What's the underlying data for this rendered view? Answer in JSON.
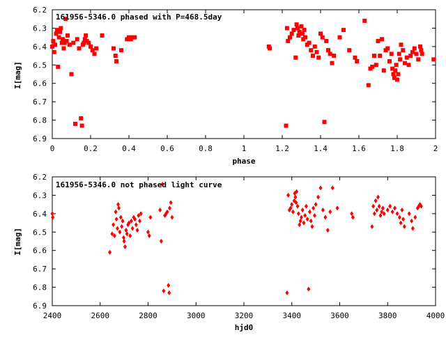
{
  "chart_data": [
    {
      "type": "scatter",
      "title": "161956-5346.0 phased with P=468.5day",
      "xlabel": "phase",
      "ylabel": "I[mag]",
      "xlim": [
        0,
        2
      ],
      "ylim": [
        6.2,
        6.9
      ],
      "y_inverted": true,
      "xticks": [
        0,
        0.2,
        0.4,
        0.6,
        0.8,
        1,
        1.2,
        1.4,
        1.6,
        1.8,
        2
      ],
      "xtick_labels": [
        "0",
        "0.2",
        "0.4",
        "0.6",
        "0.8",
        "1",
        "1.2",
        "1.4",
        "1.6",
        "1.8",
        "2"
      ],
      "yticks": [
        6.2,
        6.3,
        6.4,
        6.5,
        6.6,
        6.7,
        6.8,
        6.9
      ],
      "ytick_labels": [
        "6.2",
        "6.3",
        "6.4",
        "6.5",
        "6.6",
        "6.7",
        "6.8",
        "6.9"
      ],
      "grid": false,
      "marker_color": "#ff0000",
      "marker": "square",
      "series": [
        {
          "points": [
            [
              0.0,
              6.4
            ],
            [
              0.005,
              6.37
            ],
            [
              0.01,
              6.43
            ],
            [
              0.015,
              6.39
            ],
            [
              0.02,
              6.33
            ],
            [
              0.025,
              6.31
            ],
            [
              0.03,
              6.51
            ],
            [
              0.035,
              6.35
            ],
            [
              0.04,
              6.32
            ],
            [
              0.045,
              6.3
            ],
            [
              0.05,
              6.38
            ],
            [
              0.055,
              6.36
            ],
            [
              0.06,
              6.41
            ],
            [
              0.065,
              6.38
            ],
            [
              0.07,
              6.25
            ],
            [
              0.075,
              6.37
            ],
            [
              0.08,
              6.34
            ],
            [
              0.09,
              6.39
            ],
            [
              0.1,
              6.55
            ],
            [
              0.11,
              6.38
            ],
            [
              0.12,
              6.82
            ],
            [
              0.13,
              6.36
            ],
            [
              0.14,
              6.41
            ],
            [
              0.15,
              6.79
            ],
            [
              0.155,
              6.83
            ],
            [
              0.16,
              6.39
            ],
            [
              0.165,
              6.38
            ],
            [
              0.17,
              6.36
            ],
            [
              0.175,
              6.34
            ],
            [
              0.18,
              6.37
            ],
            [
              0.19,
              6.38
            ],
            [
              0.2,
              6.4
            ],
            [
              0.21,
              6.42
            ],
            [
              0.22,
              6.44
            ],
            [
              0.23,
              6.41
            ],
            [
              0.26,
              6.34
            ],
            [
              0.32,
              6.41
            ],
            [
              0.33,
              6.45
            ],
            [
              0.335,
              6.48
            ],
            [
              0.36,
              6.42
            ],
            [
              0.39,
              6.36
            ],
            [
              0.4,
              6.35
            ],
            [
              0.41,
              6.36
            ],
            [
              0.42,
              6.35
            ],
            [
              0.43,
              6.35
            ]
          ]
        },
        {
          "points": [
            [
              1.13,
              6.4
            ],
            [
              1.135,
              6.41
            ],
            [
              1.22,
              6.83
            ],
            [
              1.225,
              6.3
            ],
            [
              1.23,
              6.37
            ],
            [
              1.24,
              6.35
            ],
            [
              1.25,
              6.33
            ],
            [
              1.26,
              6.31
            ],
            [
              1.27,
              6.46
            ],
            [
              1.275,
              6.28
            ],
            [
              1.28,
              6.3
            ],
            [
              1.285,
              6.34
            ],
            [
              1.29,
              6.32
            ],
            [
              1.3,
              6.29
            ],
            [
              1.305,
              6.33
            ],
            [
              1.31,
              6.36
            ],
            [
              1.315,
              6.31
            ],
            [
              1.32,
              6.35
            ],
            [
              1.33,
              6.39
            ],
            [
              1.34,
              6.38
            ],
            [
              1.35,
              6.42
            ],
            [
              1.36,
              6.45
            ],
            [
              1.37,
              6.4
            ],
            [
              1.38,
              6.43
            ],
            [
              1.39,
              6.46
            ],
            [
              1.4,
              6.33
            ],
            [
              1.41,
              6.35
            ],
            [
              1.42,
              6.81
            ],
            [
              1.43,
              6.37
            ],
            [
              1.44,
              6.42
            ],
            [
              1.45,
              6.44
            ],
            [
              1.46,
              6.49
            ],
            [
              1.47,
              6.45
            ],
            [
              1.5,
              6.35
            ],
            [
              1.52,
              6.31
            ],
            [
              1.55,
              6.42
            ],
            [
              1.58,
              6.46
            ],
            [
              1.59,
              6.48
            ],
            [
              1.63,
              6.26
            ],
            [
              1.65,
              6.61
            ],
            [
              1.66,
              6.52
            ],
            [
              1.67,
              6.51
            ],
            [
              1.68,
              6.45
            ],
            [
              1.69,
              6.5
            ],
            [
              1.7,
              6.37
            ],
            [
              1.71,
              6.45
            ],
            [
              1.72,
              6.36
            ],
            [
              1.73,
              6.53
            ],
            [
              1.74,
              6.42
            ],
            [
              1.75,
              6.41
            ],
            [
              1.76,
              6.48
            ],
            [
              1.77,
              6.44
            ],
            [
              1.775,
              6.52
            ],
            [
              1.78,
              6.55
            ],
            [
              1.785,
              6.57
            ],
            [
              1.79,
              6.53
            ],
            [
              1.795,
              6.5
            ],
            [
              1.8,
              6.58
            ],
            [
              1.805,
              6.55
            ],
            [
              1.81,
              6.44
            ],
            [
              1.815,
              6.47
            ],
            [
              1.82,
              6.39
            ],
            [
              1.83,
              6.42
            ],
            [
              1.84,
              6.49
            ],
            [
              1.85,
              6.46
            ],
            [
              1.86,
              6.5
            ],
            [
              1.87,
              6.45
            ],
            [
              1.88,
              6.43
            ],
            [
              1.89,
              6.41
            ],
            [
              1.9,
              6.44
            ],
            [
              1.91,
              6.47
            ],
            [
              1.92,
              6.4
            ],
            [
              1.925,
              6.42
            ],
            [
              1.93,
              6.44
            ],
            [
              1.99,
              6.47
            ]
          ]
        }
      ]
    },
    {
      "type": "scatter",
      "title": "161956-5346.0 not phased light curve",
      "xlabel": "hjd0",
      "ylabel": "I[mag]",
      "xlim": [
        2400,
        4000
      ],
      "ylim": [
        6.2,
        6.9
      ],
      "y_inverted": true,
      "xticks": [
        2400,
        2600,
        2800,
        3000,
        3200,
        3400,
        3600,
        3800,
        4000
      ],
      "xtick_labels": [
        "2400",
        "2600",
        "2800",
        "3000",
        "3200",
        "3400",
        "3600",
        "3800",
        "4000"
      ],
      "yticks": [
        6.2,
        6.3,
        6.4,
        6.5,
        6.6,
        6.7,
        6.8,
        6.9
      ],
      "ytick_labels": [
        "6.2",
        "6.3",
        "6.4",
        "6.5",
        "6.6",
        "6.7",
        "6.8",
        "6.9"
      ],
      "grid": false,
      "marker_color": "#ff0000",
      "marker": "diamond",
      "series": [
        {
          "points": [
            [
              2400,
              6.4
            ],
            [
              2402,
              6.42
            ],
            [
              2640,
              6.61
            ],
            [
              2650,
              6.51
            ],
            [
              2655,
              6.46
            ],
            [
              2660,
              6.52
            ],
            [
              2665,
              6.39
            ],
            [
              2668,
              6.43
            ],
            [
              2672,
              6.48
            ],
            [
              2675,
              6.35
            ],
            [
              2678,
              6.37
            ],
            [
              2682,
              6.5
            ],
            [
              2686,
              6.42
            ],
            [
              2690,
              6.47
            ],
            [
              2694,
              6.44
            ],
            [
              2698,
              6.53
            ],
            [
              2700,
              6.55
            ],
            [
              2704,
              6.58
            ],
            [
              2708,
              6.49
            ],
            [
              2712,
              6.51
            ],
            [
              2716,
              6.46
            ],
            [
              2720,
              6.45
            ],
            [
              2725,
              6.52
            ],
            [
              2730,
              6.44
            ],
            [
              2735,
              6.48
            ],
            [
              2740,
              6.42
            ],
            [
              2745,
              6.43
            ],
            [
              2750,
              6.46
            ],
            [
              2755,
              6.49
            ],
            [
              2760,
              6.41
            ],
            [
              2765,
              6.44
            ],
            [
              2770,
              6.4
            ],
            [
              2800,
              6.5
            ],
            [
              2805,
              6.52
            ],
            [
              2810,
              6.42
            ],
            [
              2850,
              6.38
            ],
            [
              2855,
              6.55
            ],
            [
              2860,
              6.24
            ],
            [
              2865,
              6.82
            ],
            [
              2870,
              6.41
            ],
            [
              2875,
              6.4
            ],
            [
              2880,
              6.39
            ],
            [
              2885,
              6.79
            ],
            [
              2888,
              6.83
            ],
            [
              2890,
              6.37
            ],
            [
              2895,
              6.34
            ],
            [
              2900,
              6.42
            ]
          ]
        },
        {
          "points": [
            [
              3380,
              6.83
            ],
            [
              3385,
              6.3
            ],
            [
              3390,
              6.38
            ],
            [
              3395,
              6.37
            ],
            [
              3400,
              6.35
            ],
            [
              3405,
              6.39
            ],
            [
              3410,
              6.33
            ],
            [
              3412,
              6.29
            ],
            [
              3415,
              6.31
            ],
            [
              3418,
              6.34
            ],
            [
              3420,
              6.28
            ],
            [
              3424,
              6.36
            ],
            [
              3428,
              6.4
            ],
            [
              3432,
              6.46
            ],
            [
              3436,
              6.44
            ],
            [
              3440,
              6.42
            ],
            [
              3445,
              6.38
            ],
            [
              3450,
              6.45
            ],
            [
              3455,
              6.41
            ],
            [
              3460,
              6.36
            ],
            [
              3465,
              6.43
            ],
            [
              3470,
              6.81
            ],
            [
              3475,
              6.39
            ],
            [
              3480,
              6.44
            ],
            [
              3485,
              6.47
            ],
            [
              3490,
              6.37
            ],
            [
              3495,
              6.41
            ],
            [
              3500,
              6.35
            ],
            [
              3510,
              6.31
            ],
            [
              3520,
              6.26
            ],
            [
              3530,
              6.38
            ],
            [
              3540,
              6.42
            ],
            [
              3550,
              6.49
            ],
            [
              3560,
              6.39
            ],
            [
              3570,
              6.26
            ],
            [
              3590,
              6.37
            ],
            [
              3650,
              6.4
            ],
            [
              3655,
              6.42
            ],
            [
              3735,
              6.47
            ],
            [
              3740,
              6.36
            ],
            [
              3745,
              6.4
            ],
            [
              3750,
              6.33
            ],
            [
              3755,
              6.38
            ],
            [
              3760,
              6.31
            ],
            [
              3765,
              6.36
            ],
            [
              3770,
              6.41
            ],
            [
              3775,
              6.39
            ],
            [
              3780,
              6.37
            ],
            [
              3785,
              6.4
            ],
            [
              3800,
              6.38
            ],
            [
              3810,
              6.36
            ],
            [
              3820,
              6.39
            ],
            [
              3830,
              6.37
            ],
            [
              3840,
              6.4
            ],
            [
              3850,
              6.42
            ],
            [
              3855,
              6.45
            ],
            [
              3860,
              6.38
            ],
            [
              3865,
              6.43
            ],
            [
              3870,
              6.47
            ],
            [
              3890,
              6.4
            ],
            [
              3900,
              6.44
            ],
            [
              3905,
              6.48
            ],
            [
              3915,
              6.42
            ],
            [
              3925,
              6.37
            ],
            [
              3930,
              6.36
            ],
            [
              3935,
              6.35
            ],
            [
              3940,
              6.36
            ]
          ]
        }
      ]
    }
  ]
}
